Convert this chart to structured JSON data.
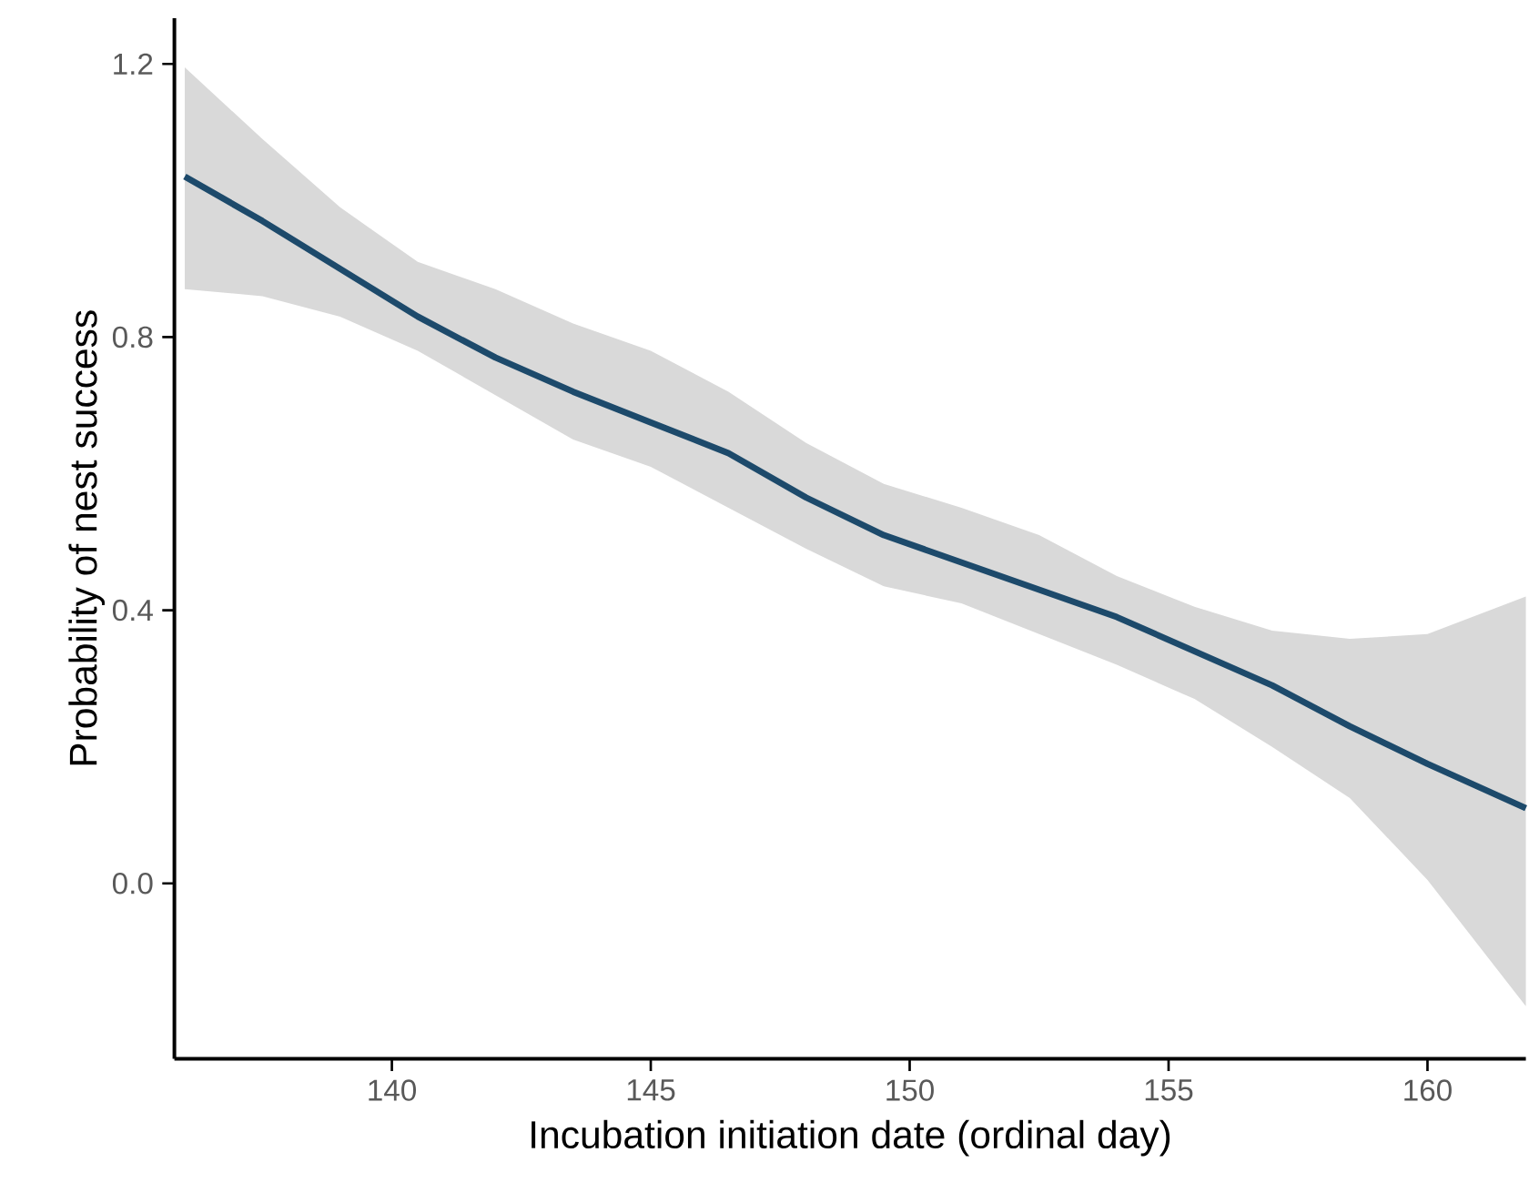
{
  "chart_data": {
    "type": "line",
    "xlabel": "Incubation initiation date (ordinal day)",
    "ylabel": "Probability of nest success",
    "x": [
      136,
      137.5,
      139,
      140.5,
      142,
      143.5,
      145,
      146.5,
      148,
      149.5,
      151,
      152.5,
      154,
      155.5,
      157,
      158.5,
      160,
      161.9
    ],
    "series": [
      {
        "color": "#1d4a6b",
        "values": [
          1.035,
          0.97,
          0.9,
          0.83,
          0.77,
          0.72,
          0.675,
          0.63,
          0.565,
          0.51,
          0.47,
          0.43,
          0.39,
          0.34,
          0.29,
          0.23,
          0.175,
          0.11
        ],
        "upper": [
          1.195,
          1.09,
          0.99,
          0.91,
          0.87,
          0.82,
          0.78,
          0.72,
          0.645,
          0.585,
          0.55,
          0.51,
          0.45,
          0.405,
          0.37,
          0.358,
          0.365,
          0.42
        ],
        "lower": [
          0.87,
          0.86,
          0.83,
          0.78,
          0.715,
          0.65,
          0.61,
          0.55,
          0.49,
          0.435,
          0.41,
          0.365,
          0.32,
          0.27,
          0.2,
          0.125,
          0.005,
          -0.18
        ]
      }
    ],
    "xlim": [
      135.8,
      161.9
    ],
    "ylim": [
      -0.257,
      1.267
    ],
    "xticks": [
      140,
      145,
      150,
      155,
      160
    ],
    "yticks": [
      {
        "value": 0,
        "label": "0.0"
      },
      0.4,
      0.8,
      1.2
    ]
  }
}
